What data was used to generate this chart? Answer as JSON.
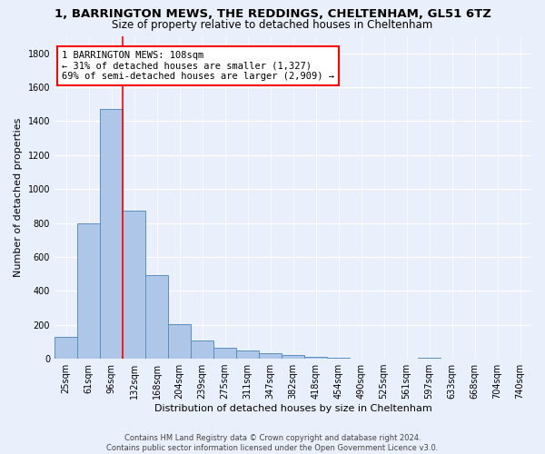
{
  "title_line1": "1, BARRINGTON MEWS, THE REDDINGS, CHELTENHAM, GL51 6TZ",
  "title_line2": "Size of property relative to detached houses in Cheltenham",
  "xlabel": "Distribution of detached houses by size in Cheltenham",
  "ylabel": "Number of detached properties",
  "footer_line1": "Contains HM Land Registry data © Crown copyright and database right 2024.",
  "footer_line2": "Contains public sector information licensed under the Open Government Licence v3.0.",
  "bar_labels": [
    "25sqm",
    "61sqm",
    "96sqm",
    "132sqm",
    "168sqm",
    "204sqm",
    "239sqm",
    "275sqm",
    "311sqm",
    "347sqm",
    "382sqm",
    "418sqm",
    "454sqm",
    "490sqm",
    "525sqm",
    "561sqm",
    "597sqm",
    "633sqm",
    "668sqm",
    "704sqm",
    "740sqm"
  ],
  "bar_values": [
    130,
    800,
    1470,
    875,
    495,
    205,
    105,
    65,
    48,
    33,
    20,
    12,
    5,
    3,
    2,
    1,
    8,
    0,
    0,
    0,
    0
  ],
  "bar_color": "#aec6e8",
  "bar_edgecolor": "#5a8fc0",
  "annotation_text": "1 BARRINGTON MEWS: 108sqm\n← 31% of detached houses are smaller (1,327)\n69% of semi-detached houses are larger (2,909) →",
  "annotation_box_color": "white",
  "annotation_box_edgecolor": "red",
  "vline_x": 2.5,
  "vline_color": "red",
  "ylim": [
    0,
    1900
  ],
  "yticks": [
    0,
    200,
    400,
    600,
    800,
    1000,
    1200,
    1400,
    1600,
    1800
  ],
  "background_color": "#eaf0fb",
  "grid_color": "white",
  "title_fontsize": 9.5,
  "subtitle_fontsize": 8.5,
  "axis_label_fontsize": 8,
  "tick_fontsize": 7,
  "annotation_fontsize": 7.5,
  "footer_fontsize": 6
}
